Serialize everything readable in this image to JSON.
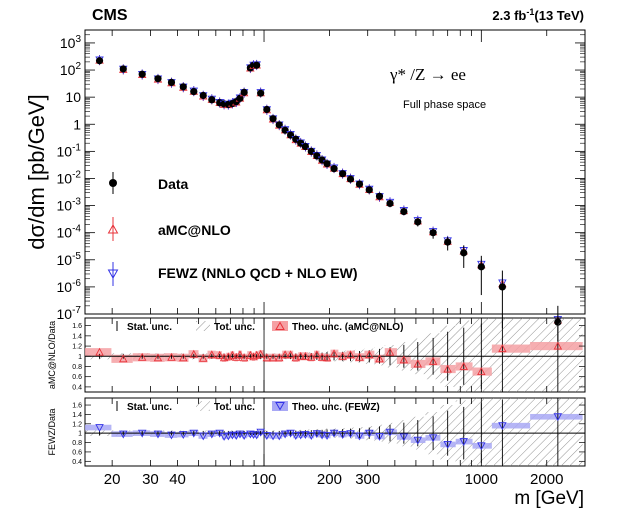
{
  "header": {
    "experiment": "CMS",
    "lumi_value": "2.3 fb",
    "lumi_exp": "-1",
    "energy": "(13 TeV)"
  },
  "process": {
    "label": "γ* /Z → ee",
    "phase_space": "Full phase space"
  },
  "legend": {
    "data": "Data",
    "amc": "aMC@NLO",
    "fewz": "FEWZ (NNLO QCD + NLO EW)"
  },
  "ratio_legend": {
    "stat": "Stat. unc.",
    "tot": "Tot. unc.",
    "theo_amc": "Theo. unc. (aMC@NLO)",
    "theo_fewz": "Theo. unc. (FEWZ)"
  },
  "axes": {
    "ylabel": "dσ/dm [pb/GeV]",
    "xlabel": "m [GeV]",
    "ratio1_ylabel": "aMC@NLO/Data",
    "ratio2_ylabel": "FEWZ/Data"
  },
  "colors": {
    "data": "#000000",
    "amc": "#e8333a",
    "fewz": "#3333e6",
    "amc_band": "#f5a0a3",
    "fewz_band": "#a8a8f5"
  },
  "chart_data": [
    {
      "type": "scatter",
      "panel": "main",
      "xscale": "log",
      "yscale": "log",
      "xlim": [
        15,
        3000
      ],
      "ylim": [
        1e-07,
        3000
      ],
      "xticks": [
        "20",
        "30",
        "40",
        "100",
        "200",
        "300",
        "1000",
        "2000"
      ],
      "yticks": [
        "10^3",
        "10^2",
        "10",
        "1",
        "10^-1",
        "10^-2",
        "10^-3",
        "10^-4",
        "10^-5",
        "10^-6",
        "10^-7"
      ],
      "x": [
        17.5,
        22.5,
        27.5,
        32.5,
        37.5,
        42.5,
        47.5,
        52.5,
        57.5,
        62.5,
        65.5,
        68.5,
        71.5,
        74.5,
        77.5,
        81,
        86.5,
        89.5,
        92.5,
        96.5,
        103,
        110,
        117.5,
        125,
        132.5,
        140,
        147.5,
        155,
        165,
        175,
        185,
        195,
        210,
        230,
        250,
        275,
        305,
        340,
        380,
        440,
        510,
        600,
        700,
        830,
        1000,
        1250,
        2250
      ],
      "series": [
        {
          "name": "Data",
          "y": [
            220,
            110,
            70,
            48,
            35,
            24,
            16,
            11.5,
            8,
            6.2,
            5.6,
            5.4,
            5.8,
            6.8,
            9,
            15,
            120,
            150,
            150,
            14,
            3.5,
            1.6,
            0.95,
            0.6,
            0.4,
            0.28,
            0.2,
            0.15,
            0.1,
            0.068,
            0.048,
            0.035,
            0.023,
            0.015,
            0.0095,
            0.0062,
            0.0038,
            0.0022,
            0.0012,
            0.0006,
            0.00025,
            0.0001,
            4.5e-05,
            1.8e-05,
            5.5e-06,
            1e-06,
            5e-08
          ],
          "y_low": [
            200,
            100,
            64,
            44,
            32,
            22,
            14.6,
            10.5,
            7.3,
            5.7,
            5.1,
            4.9,
            5.3,
            6.2,
            8.2,
            13.8,
            110,
            138,
            138,
            12.8,
            3.2,
            1.46,
            0.86,
            0.54,
            0.36,
            0.25,
            0.18,
            0.135,
            0.09,
            0.061,
            0.043,
            0.031,
            0.02,
            0.013,
            0.0082,
            0.0053,
            0.0032,
            0.0018,
            0.00095,
            0.00045,
            0.00017,
            6e-05,
            2.2e-05,
            5e-06,
            5e-07,
            3e-08,
            1e-08
          ],
          "y_high": [
            240,
            120,
            76,
            52,
            38,
            26,
            17.4,
            12.5,
            8.7,
            6.7,
            6.1,
            5.9,
            6.3,
            7.4,
            9.8,
            16.2,
            130,
            162,
            162,
            15.2,
            3.8,
            1.74,
            1.04,
            0.66,
            0.44,
            0.31,
            0.22,
            0.165,
            0.11,
            0.075,
            0.053,
            0.039,
            0.026,
            0.017,
            0.0108,
            0.0071,
            0.0044,
            0.0026,
            0.0015,
            0.00075,
            0.00033,
            0.00014,
            7e-05,
            3.4e-05,
            1.4e-05,
            4e-06,
            2e-07
          ]
        },
        {
          "name": "aMC@NLO",
          "y": [
            230,
            105,
            68,
            46,
            34,
            23,
            16.5,
            11,
            8.2,
            6.3,
            5.4,
            5.3,
            5.9,
            6.6,
            9.2,
            14.5,
            118,
            148,
            152,
            14.5,
            3.4,
            1.55,
            0.92,
            0.62,
            0.41,
            0.27,
            0.2,
            0.15,
            0.098,
            0.07,
            0.047,
            0.034,
            0.024,
            0.015,
            0.0098,
            0.0061,
            0.0039,
            0.0021,
            0.0013,
            0.00065,
            0.00027,
            0.000108,
            4.8e-05,
            2.1e-05,
            6.5e-06,
            1.3e-06,
            6e-08
          ]
        },
        {
          "name": "FEWZ (NNLO QCD + NLO EW)",
          "y": [
            235,
            107,
            69,
            47,
            34.5,
            23.5,
            16.8,
            11.3,
            8.4,
            6.4,
            5.5,
            5.35,
            5.95,
            6.7,
            9.3,
            14.8,
            121,
            151,
            155,
            14.8,
            3.45,
            1.58,
            0.94,
            0.63,
            0.42,
            0.275,
            0.205,
            0.152,
            0.1,
            0.071,
            0.048,
            0.0345,
            0.0245,
            0.0152,
            0.0099,
            0.0062,
            0.004,
            0.00215,
            0.00132,
            0.00066,
            0.00028,
            0.00011,
            5e-05,
            2.2e-05,
            6.8e-06,
            1.4e-06,
            6.2e-08
          ]
        }
      ]
    },
    {
      "type": "scatter",
      "panel": "ratio-amc",
      "xscale": "log",
      "ylim": [
        0.3,
        1.75
      ],
      "yticks": [
        "0.4",
        "0.6",
        "0.8",
        "1",
        "1.2",
        "1.4",
        "1.6"
      ],
      "x": [
        17.5,
        22.5,
        27.5,
        32.5,
        37.5,
        42.5,
        47.5,
        52.5,
        57.5,
        62.5,
        65.5,
        68.5,
        71.5,
        74.5,
        77.5,
        81,
        86.5,
        89.5,
        92.5,
        96.5,
        103,
        110,
        117.5,
        125,
        132.5,
        140,
        147.5,
        155,
        165,
        175,
        185,
        195,
        210,
        230,
        250,
        275,
        305,
        340,
        380,
        440,
        510,
        600,
        700,
        830,
        1000,
        1250,
        2250
      ],
      "series": [
        {
          "name": "aMC@NLO",
          "y": [
            1.08,
            0.95,
            0.98,
            0.97,
            0.98,
            0.97,
            1.04,
            0.96,
            1.03,
            1.02,
            0.97,
            0.99,
            1.02,
            0.98,
            1.03,
            0.97,
            1.02,
            0.99,
            1.02,
            1.04,
            0.97,
            0.97,
            0.97,
            1.03,
            1.03,
            0.97,
            1.0,
            1.0,
            0.98,
            1.03,
            0.98,
            0.97,
            1.05,
            1.0,
            1.03,
            0.98,
            1.03,
            0.95,
            1.08,
            0.93,
            0.85,
            0.9,
            0.75,
            0.8,
            0.7,
            1.15,
            1.2
          ]
        }
      ],
      "bands": {
        "theo_unc_halfwidth": 0.08,
        "tot_unc_halfwidth": [
          0.06,
          0.06,
          0.06,
          0.06,
          0.06,
          0.06,
          0.06,
          0.06,
          0.06,
          0.06,
          0.06,
          0.06,
          0.06,
          0.06,
          0.06,
          0.06,
          0.05,
          0.05,
          0.05,
          0.06,
          0.06,
          0.06,
          0.06,
          0.06,
          0.07,
          0.07,
          0.07,
          0.08,
          0.08,
          0.09,
          0.09,
          0.1,
          0.1,
          0.11,
          0.12,
          0.13,
          0.15,
          0.18,
          0.22,
          0.28,
          0.35,
          0.45,
          0.6,
          0.7,
          0.8,
          0.9,
          1.0
        ]
      }
    },
    {
      "type": "scatter",
      "panel": "ratio-fewz",
      "xscale": "log",
      "ylim": [
        0.3,
        1.75
      ],
      "yticks": [
        "0.4",
        "0.6",
        "0.8",
        "1",
        "1.2",
        "1.4",
        "1.6"
      ],
      "x": [
        17.5,
        22.5,
        27.5,
        32.5,
        37.5,
        42.5,
        47.5,
        52.5,
        57.5,
        62.5,
        65.5,
        68.5,
        71.5,
        74.5,
        77.5,
        81,
        86.5,
        89.5,
        92.5,
        96.5,
        103,
        110,
        117.5,
        125,
        132.5,
        140,
        147.5,
        155,
        165,
        175,
        185,
        195,
        210,
        230,
        250,
        275,
        305,
        340,
        380,
        440,
        510,
        600,
        700,
        830,
        1000,
        1250,
        2250
      ],
      "series": [
        {
          "name": "FEWZ (NNLO QCD + NLO EW)",
          "y": [
            1.12,
            0.98,
            1.0,
            0.98,
            0.96,
            0.97,
            1.0,
            0.94,
            0.98,
            1.0,
            0.93,
            0.94,
            0.96,
            0.95,
            0.98,
            0.95,
            0.98,
            0.97,
            0.96,
            1.02,
            0.95,
            0.94,
            0.94,
            0.98,
            1.0,
            0.95,
            0.96,
            0.97,
            0.95,
            0.99,
            0.96,
            0.95,
            1.0,
            0.97,
            0.99,
            0.94,
            1.0,
            0.93,
            1.02,
            0.92,
            0.85,
            0.9,
            0.76,
            0.82,
            0.73,
            1.16,
            1.35
          ]
        }
      ],
      "bands": {
        "theo_unc_halfwidth": 0.06
      }
    }
  ]
}
